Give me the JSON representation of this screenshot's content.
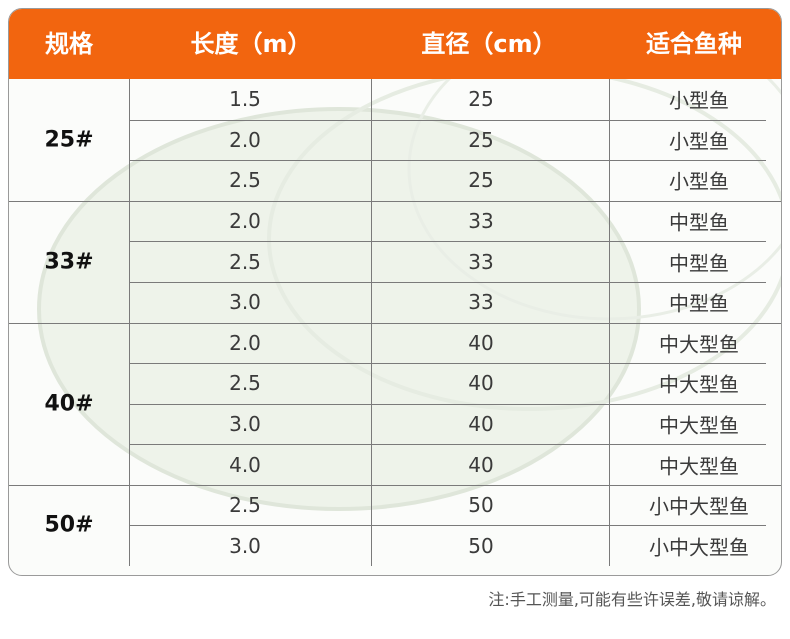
{
  "table": {
    "columns": [
      "规格",
      "长度（m）",
      "直径（cm）",
      "适合鱼种"
    ],
    "groups": [
      {
        "spec": "25#",
        "rows": [
          [
            "1.5",
            "25",
            "小型鱼"
          ],
          [
            "2.0",
            "25",
            "小型鱼"
          ],
          [
            "2.5",
            "25",
            "小型鱼"
          ]
        ]
      },
      {
        "spec": "33#",
        "rows": [
          [
            "2.0",
            "33",
            "中型鱼"
          ],
          [
            "2.5",
            "33",
            "中型鱼"
          ],
          [
            "3.0",
            "33",
            "中型鱼"
          ]
        ]
      },
      {
        "spec": "40#",
        "rows": [
          [
            "2.0",
            "40",
            "中大型鱼"
          ],
          [
            "2.5",
            "40",
            "中大型鱼"
          ],
          [
            "3.0",
            "40",
            "中大型鱼"
          ],
          [
            "4.0",
            "40",
            "中大型鱼"
          ]
        ]
      },
      {
        "spec": "50#",
        "rows": [
          [
            "2.5",
            "50",
            "小中大型鱼"
          ],
          [
            "3.0",
            "50",
            "小中大型鱼"
          ]
        ]
      }
    ]
  },
  "note": "注:手工测量,可能有些许误差,敬请谅解。"
}
